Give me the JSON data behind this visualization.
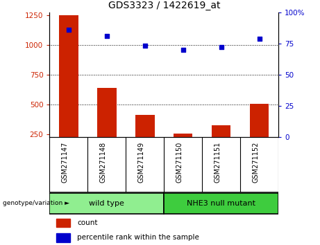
{
  "title": "GDS3323 / 1422619_at",
  "samples": [
    "GSM271147",
    "GSM271148",
    "GSM271149",
    "GSM271150",
    "GSM271151",
    "GSM271152"
  ],
  "counts": [
    1250,
    640,
    415,
    255,
    325,
    505
  ],
  "percentile_ranks": [
    86,
    81,
    73,
    70,
    72,
    79
  ],
  "group_labels": [
    "wild type",
    "NHE3 null mutant"
  ],
  "group_colors": [
    "#90EE90",
    "#3ECC3E"
  ],
  "bar_color": "#CC2200",
  "dot_color": "#0000CC",
  "ylim_left": [
    225,
    1275
  ],
  "ylim_right": [
    0,
    100
  ],
  "yticks_left": [
    250,
    500,
    750,
    1000,
    1250
  ],
  "yticks_right": [
    0,
    25,
    50,
    75,
    100
  ],
  "grid_values": [
    500,
    750,
    1000
  ],
  "legend_count": "count",
  "legend_pct": "percentile rank within the sample",
  "cell_bg": "#d8d8d8",
  "plot_bg": "#ffffff"
}
